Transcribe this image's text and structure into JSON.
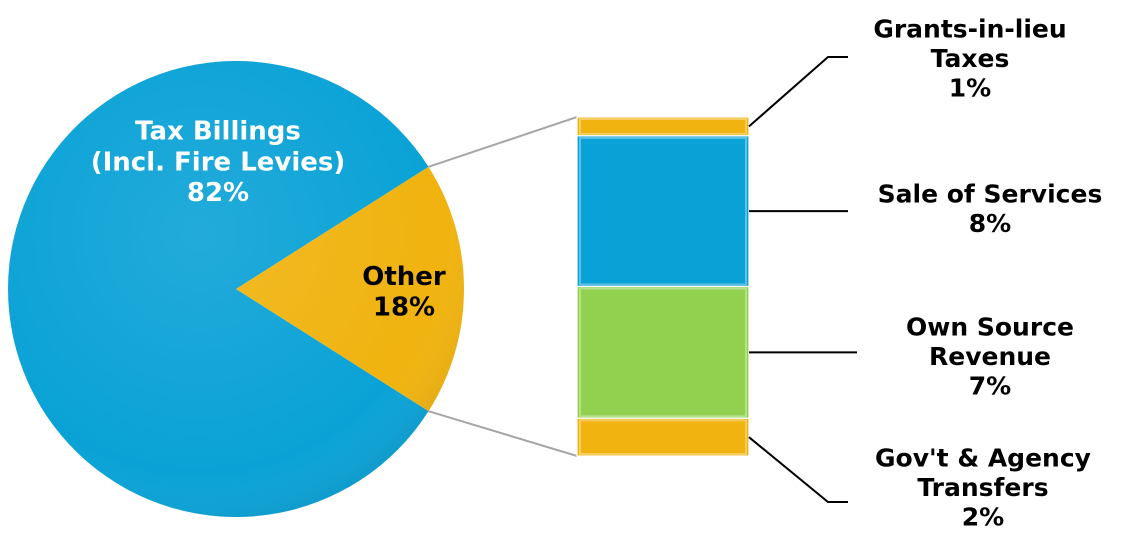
{
  "chart_data": {
    "type": "bar-of-pie",
    "pie": {
      "slices": [
        {
          "label_lines": [
            "Tax Billings",
            "(Incl. Fire Levies)",
            "82%"
          ],
          "value": 82,
          "color": "#0aa2d6",
          "label_color": "#ffffff"
        },
        {
          "label_lines": [
            "Other",
            "18%"
          ],
          "value": 18,
          "color": "#f0b30f",
          "label_color": "#000000"
        }
      ]
    },
    "bar": {
      "total_label": "Other",
      "segments": [
        {
          "label_lines": [
            "Grants-in-lieu",
            "Taxes",
            "1%"
          ],
          "value": 1,
          "color": "#f0b30f"
        },
        {
          "label_lines": [
            "Sale of Services",
            "8%"
          ],
          "value": 8,
          "color": "#0aa2d6"
        },
        {
          "label_lines": [
            "Own Source",
            "Revenue",
            "7%"
          ],
          "value": 7,
          "color": "#92d04f"
        },
        {
          "label_lines": [
            "Gov't & Agency",
            "Transfers",
            "2%"
          ],
          "value": 2,
          "color": "#f0b30f"
        }
      ]
    }
  }
}
